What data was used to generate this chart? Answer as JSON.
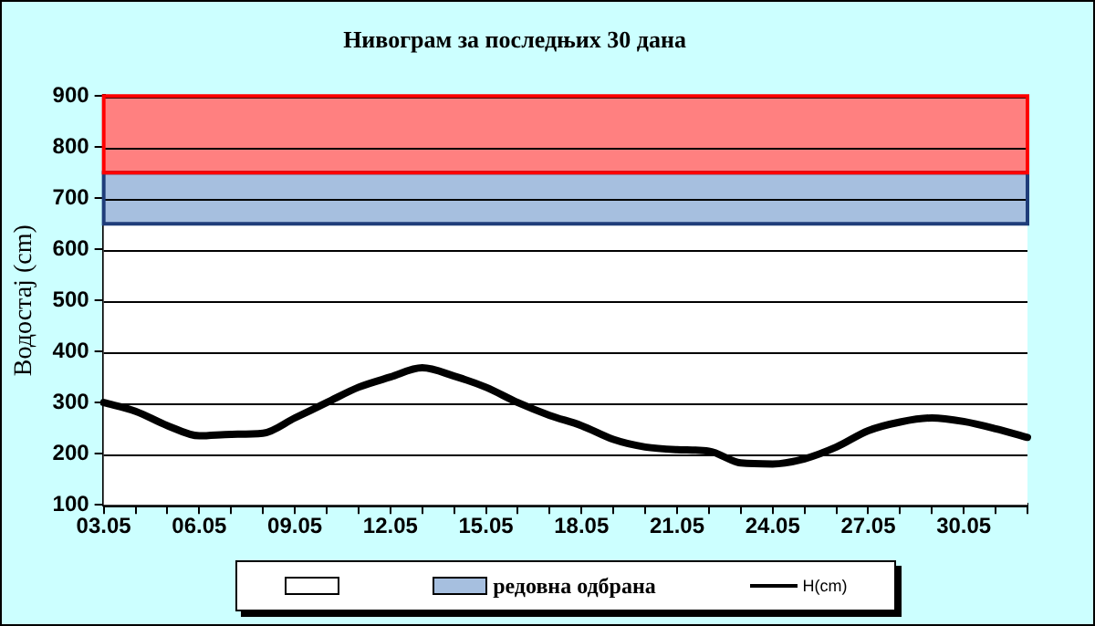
{
  "chart_data": {
    "type": "line",
    "title": "Нивограм за последњих 30 дана",
    "ylabel": "Водостај (cm)",
    "categories": [
      "03.05",
      null,
      null,
      "06.05",
      null,
      null,
      "09.05",
      null,
      null,
      "12.05",
      null,
      null,
      "15.05",
      null,
      null,
      "18.05",
      null,
      null,
      "21.05",
      null,
      null,
      "24.05",
      null,
      null,
      "27.05",
      null,
      null,
      "30.05",
      null,
      null
    ],
    "series": [
      {
        "name": "H(cm)",
        "color": "#000000",
        "values": [
          300,
          283,
          255,
          235,
          238,
          240,
          270,
          300,
          330,
          350,
          368,
          352,
          330,
          300,
          275,
          255,
          228,
          213,
          208,
          205,
          182,
          180,
          190,
          213,
          245,
          262,
          270,
          263,
          249,
          232
        ]
      }
    ],
    "ylim": [
      100,
      900
    ],
    "yticks": [
      100,
      200,
      300,
      400,
      500,
      600,
      700,
      800,
      900
    ],
    "grid": "y",
    "legend": "bottom",
    "marker": "none",
    "line_style": "solid",
    "bands": [
      {
        "axis": "y",
        "from": 100,
        "to": 650,
        "label": null,
        "color": "#ffffff"
      },
      {
        "axis": "y",
        "from": 650,
        "to": 750,
        "label": "редовна одбрана",
        "color": "#a6bfdf"
      },
      {
        "axis": "y",
        "from": 750,
        "to": 900,
        "label": null,
        "color": "#ff8080"
      }
    ]
  }
}
